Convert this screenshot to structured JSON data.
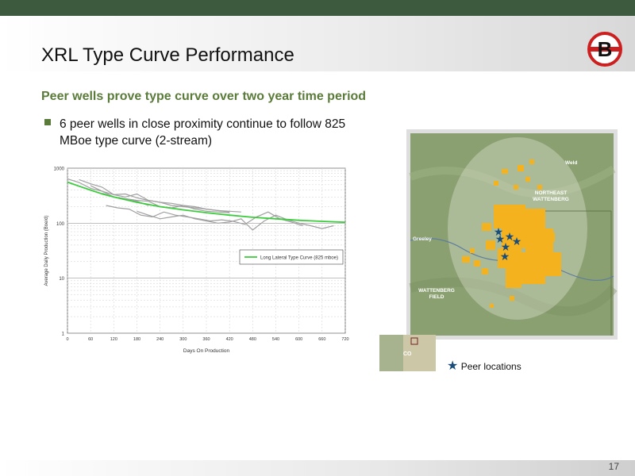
{
  "slide": {
    "title": "XRL Type Curve Performance",
    "subtitle": "Peer wells prove type curve over two year time period",
    "bullets": [
      "6 peer wells in close proximity continue to follow 825 MBoe type curve (2-stream)"
    ],
    "page_number": "17",
    "logo_letter": "B"
  },
  "map": {
    "labels": {
      "weld": "Weld",
      "northeast": "NORTHEAST",
      "wattenberg": "WATTENBERG",
      "greeley": "Greeley",
      "field_1": "WATTENBERG",
      "field_2": "FIELD",
      "inset_state": "CO"
    },
    "legend_label": "Peer locations",
    "colors": {
      "acreage": "#f5b21f",
      "star": "#1a4e7a",
      "terrain": "#8aa070"
    }
  },
  "chart_data": {
    "type": "line",
    "title": "",
    "xlabel": "Days On Production",
    "ylabel": "Average Daily Production (Boe/d)",
    "xlim": [
      0,
      720
    ],
    "ylim": [
      1,
      1000
    ],
    "yscale": "log",
    "x_ticks": [
      0,
      60,
      120,
      180,
      240,
      300,
      360,
      420,
      480,
      540,
      600,
      660,
      720
    ],
    "y_ticks": [
      1,
      10,
      100,
      1000
    ],
    "y_tick_labels": [
      "1",
      "10",
      "100",
      "1000"
    ],
    "grid": true,
    "legend": {
      "placement": "center-right",
      "entries": [
        "Long Lateral Type Curve (825 mboe)"
      ]
    },
    "series": [
      {
        "name": "Long Lateral Type Curve (825 mboe)",
        "color": "#3dcc3d",
        "x": [
          0,
          30,
          60,
          90,
          120,
          180,
          240,
          300,
          360,
          420,
          480,
          540,
          600,
          660,
          720
        ],
        "y": [
          560,
          470,
          400,
          340,
          300,
          240,
          200,
          175,
          155,
          140,
          128,
          120,
          113,
          108,
          104
        ]
      },
      {
        "color": "#a0a0a0",
        "x": [
          0,
          30,
          60,
          90,
          120,
          150,
          180,
          210
        ],
        "y": [
          640,
          550,
          430,
          380,
          300,
          270,
          250,
          210
        ]
      },
      {
        "color": "#a0a0a0",
        "x": [
          30,
          60,
          90,
          120,
          150,
          180,
          210,
          240,
          270,
          300,
          330,
          360,
          390,
          420
        ],
        "y": [
          620,
          520,
          450,
          330,
          300,
          340,
          260,
          240,
          230,
          210,
          200,
          180,
          170,
          160
        ]
      },
      {
        "color": "#a0a0a0",
        "x": [
          60,
          90,
          120,
          150,
          180,
          210,
          240,
          270,
          300,
          330,
          360,
          390,
          420,
          450
        ],
        "y": [
          480,
          380,
          330,
          340,
          290,
          260,
          240,
          210,
          200,
          190,
          180,
          170,
          165,
          160
        ]
      },
      {
        "color": "#a0a0a0",
        "x": [
          90,
          120,
          150,
          180,
          210,
          240,
          270,
          300,
          330,
          360,
          390,
          420
        ],
        "y": [
          350,
          300,
          280,
          260,
          250,
          200,
          190,
          210,
          180,
          165,
          160,
          155
        ]
      },
      {
        "color": "#a0a0a0",
        "x": [
          100,
          130,
          160,
          190,
          220,
          250,
          280,
          310,
          340,
          370,
          400,
          430,
          460,
          490,
          520,
          550,
          580,
          610
        ],
        "y": [
          210,
          190,
          180,
          140,
          130,
          160,
          140,
          130,
          120,
          110,
          115,
          108,
          95,
          130,
          160,
          120,
          105,
          90
        ]
      },
      {
        "color": "#a0a0a0",
        "x": [
          180,
          210,
          240,
          270,
          300,
          330,
          360,
          390,
          420,
          450,
          480,
          510,
          540,
          570,
          600,
          630,
          660,
          690
        ],
        "y": [
          165,
          140,
          120,
          130,
          140,
          120,
          110,
          100,
          105,
          120,
          75,
          110,
          140,
          115,
          100,
          90,
          80,
          90
        ]
      }
    ]
  }
}
